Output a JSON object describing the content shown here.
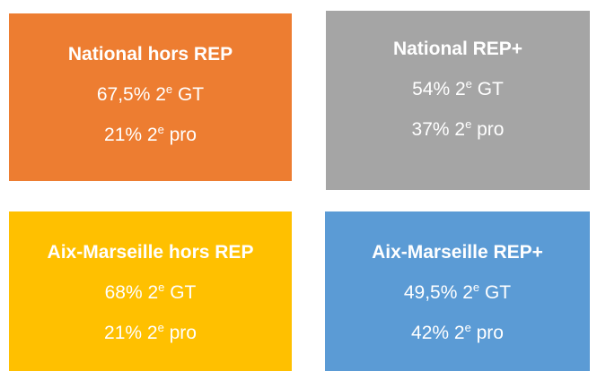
{
  "boxes": [
    {
      "title": "National hors REP",
      "color": "#ED7D31",
      "lines": [
        {
          "pre": "67,5% 2",
          "sup": "e",
          "post": " GT"
        },
        {
          "pre": "21% 2",
          "sup": "e",
          "post": " pro"
        }
      ]
    },
    {
      "title": "National REP+",
      "color": "#A5A5A5",
      "lines": [
        {
          "pre": "54% 2",
          "sup": "e",
          "post": " GT"
        },
        {
          "pre": "37% 2",
          "sup": "e",
          "post": " pro"
        }
      ]
    },
    {
      "title": "Aix-Marseille hors REP",
      "color": "#FFC000",
      "lines": [
        {
          "pre": "68% 2",
          "sup": "e",
          "post": " GT"
        },
        {
          "pre": "21% 2",
          "sup": "e",
          "post": " pro"
        }
      ]
    },
    {
      "title": "Aix-Marseille REP+",
      "color": "#5B9BD5",
      "lines": [
        {
          "pre": "49,5% 2",
          "sup": "e",
          "post": " GT"
        },
        {
          "pre": "42% 2",
          "sup": "e",
          "post": " pro"
        }
      ]
    }
  ]
}
